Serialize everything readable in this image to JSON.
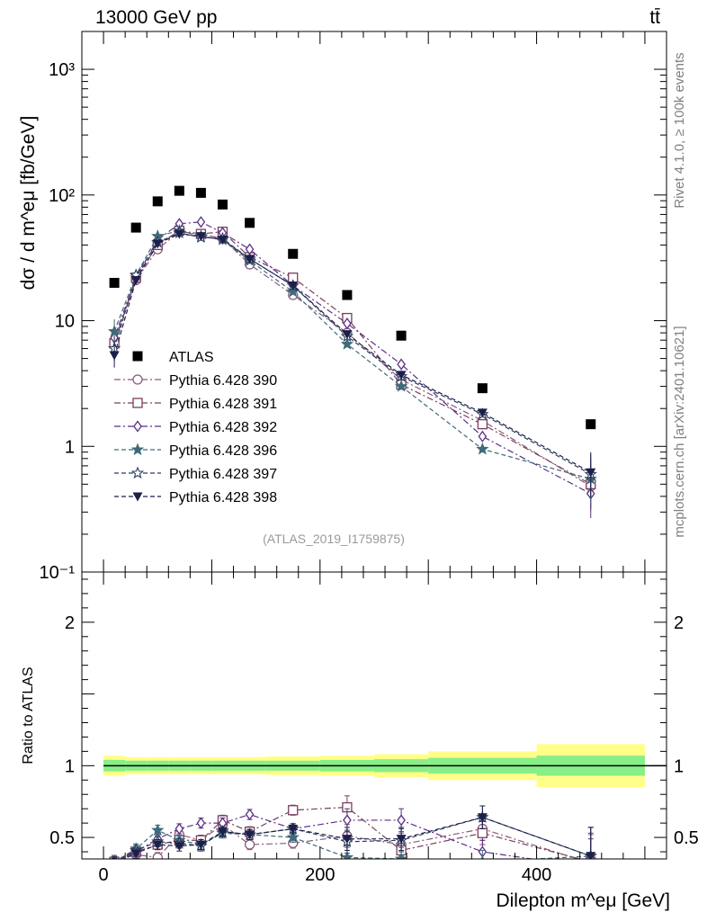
{
  "header": {
    "energy_label": "13000 GeV pp",
    "process_label": "tt̄"
  },
  "side_labels": {
    "rivet": "Rivet 4.1.0, ≥ 100k events",
    "source": "mcplots.cern.ch [arXiv:2401.10621]"
  },
  "chart_data": [
    {
      "type": "scatter",
      "panel": "main",
      "title": "13000 GeV pp",
      "ylabel": "dσ / d m^eμ [fb/GeV]",
      "yscale": "log",
      "ylim": [
        0.1,
        2000
      ],
      "xlim": [
        -20,
        520
      ],
      "analysis_label": "(ATLAS_2019_I1759875)",
      "y_ticks": [
        "10⁻¹",
        "1",
        "10",
        "10²",
        "10³"
      ],
      "x": [
        10,
        30,
        50,
        70,
        90,
        110,
        135,
        175,
        225,
        275,
        350,
        450
      ],
      "x_bin_edges": [
        0,
        20,
        40,
        60,
        80,
        100,
        120,
        150,
        200,
        250,
        300,
        400,
        500
      ],
      "series": [
        {
          "name": "ATLAS",
          "color": "#000000",
          "marker": "square-filled",
          "line": "none",
          "values": [
            20,
            55,
            89,
            108,
            104,
            84,
            60,
            34,
            16,
            7.6,
            2.9,
            1.5
          ]
        },
        {
          "name": "Pythia 6.428 390",
          "color": "#8a5a7a",
          "marker": "circle-open",
          "line": "dashdot",
          "values": [
            6.8,
            21,
            37,
            51,
            49,
            45,
            28,
            16,
            8,
            3.4,
            1.6,
            0.48
          ]
        },
        {
          "name": "Pythia 6.428 391",
          "color": "#7a3f5e",
          "marker": "square-open",
          "line": "dashdot",
          "values": [
            6.6,
            22,
            40,
            52,
            49,
            51,
            32,
            22,
            10.5,
            3.1,
            1.5,
            0.5
          ]
        },
        {
          "name": "Pythia 6.428 392",
          "color": "#5b2f86",
          "marker": "diamond-open",
          "line": "dashdot",
          "values": [
            7.3,
            22,
            44,
            59,
            61,
            50,
            37,
            19,
            9.5,
            4.5,
            1.2,
            0.42
          ]
        },
        {
          "name": "Pythia 6.428 396",
          "color": "#3f6b78",
          "marker": "star-filled",
          "line": "dashed",
          "values": [
            8.2,
            23,
            47,
            52,
            47,
            44,
            30,
            17,
            6.5,
            3.0,
            0.95,
            0.55
          ]
        },
        {
          "name": "Pythia 6.428 397",
          "color": "#2c3e5e",
          "marker": "star-open",
          "line": "dashed",
          "values": [
            6,
            23,
            42,
            50,
            46,
            45,
            31,
            19,
            7.5,
            3.6,
            1.8,
            0.6
          ]
        },
        {
          "name": "Pythia 6.428 398",
          "color": "#1b1f4a",
          "marker": "triangle-down-filled",
          "line": "dashed",
          "values": [
            5.3,
            21,
            41,
            49,
            47,
            44,
            31,
            19,
            7.8,
            3.7,
            1.85,
            0.62
          ]
        }
      ]
    },
    {
      "type": "scatter",
      "panel": "ratio",
      "xlabel": "Dilepton m^eμ [GeV]",
      "ylabel": "Ratio to ATLAS",
      "ylim": [
        0.35,
        2.35
      ],
      "xlim": [
        -20,
        520
      ],
      "x_ticks": [
        "0",
        "200",
        "400"
      ],
      "y_ticks": [
        "0.5",
        "1",
        "2"
      ],
      "band_inner": [
        0.04,
        0.035,
        0.035,
        0.035,
        0.035,
        0.035,
        0.035,
        0.035,
        0.04,
        0.045,
        0.055,
        0.07
      ],
      "band_outer": [
        0.07,
        0.06,
        0.06,
        0.06,
        0.06,
        0.06,
        0.06,
        0.065,
        0.07,
        0.08,
        0.1,
        0.15
      ],
      "x": [
        10,
        30,
        50,
        70,
        90,
        110,
        135,
        175,
        225,
        275,
        350,
        450
      ],
      "series": [
        {
          "name": "Pythia 6.428 390",
          "values": [
            0.34,
            0.38,
            0.36,
            0.52,
            0.48,
            0.59,
            0.45,
            0.46,
            0.51,
            0.45,
            0.56,
            0.32
          ]
        },
        {
          "name": "Pythia 6.428 391",
          "values": [
            0.33,
            0.4,
            0.45,
            0.48,
            0.48,
            0.62,
            0.54,
            0.69,
            0.71,
            0.41,
            0.53,
            0.33
          ]
        },
        {
          "name": "Pythia 6.428 392",
          "values": [
            0.33,
            0.4,
            0.49,
            0.56,
            0.6,
            0.6,
            0.66,
            0.56,
            0.62,
            0.62,
            0.4,
            0.29
          ]
        },
        {
          "name": "Pythia 6.428 396",
          "values": [
            0.33,
            0.42,
            0.55,
            0.48,
            0.45,
            0.53,
            0.52,
            0.5,
            0.36,
            0.35,
            0.33,
            0.37
          ]
        },
        {
          "name": "Pythia 6.428 397",
          "values": [
            0.33,
            0.41,
            0.47,
            0.46,
            0.44,
            0.54,
            0.52,
            0.56,
            0.47,
            0.48,
            0.64,
            0.37
          ]
        },
        {
          "name": "Pythia 6.428 398",
          "values": [
            0.32,
            0.39,
            0.45,
            0.44,
            0.45,
            0.54,
            0.52,
            0.56,
            0.49,
            0.49,
            0.64,
            0.37
          ]
        }
      ]
    }
  ]
}
